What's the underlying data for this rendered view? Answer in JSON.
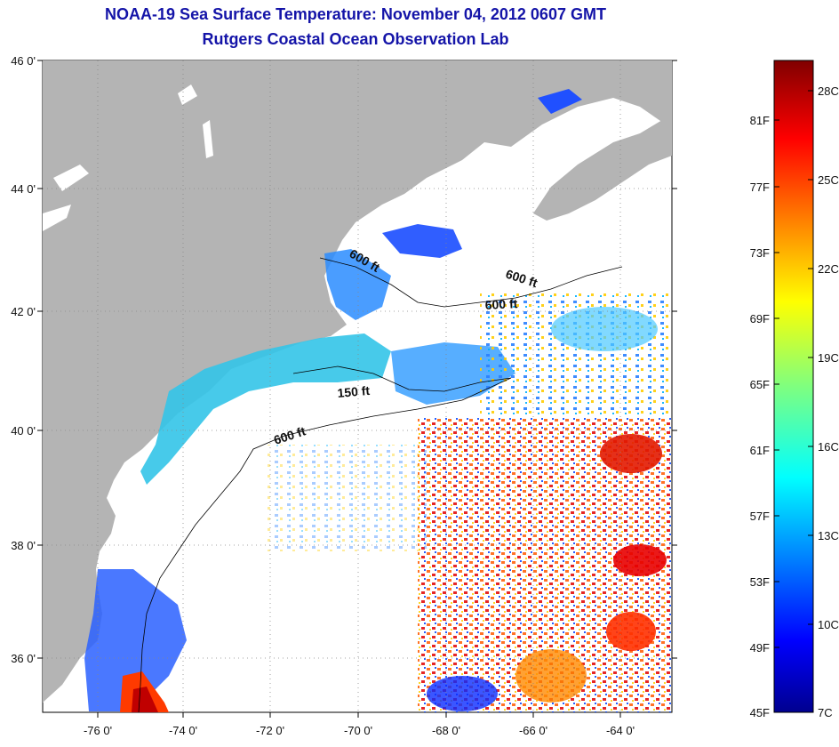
{
  "header": {
    "title": "NOAA-19 Sea Surface Temperature:  November 04, 2012 0607 GMT",
    "subtitle": "Rutgers Coastal Ocean Observation Lab"
  },
  "axes": {
    "lat_labels": [
      "46 0'",
      "44 0'",
      "42 0'",
      "40 0'",
      "38 0'",
      "36 0'"
    ],
    "lon_labels": [
      "-76 0'",
      "-74 0'",
      "-72 0'",
      "-70 0'",
      "-68 0'",
      "-66 0'",
      "-64 0'"
    ],
    "lat_range": [
      35,
      46
    ],
    "lon_range": [
      -77,
      -63
    ],
    "grid": "dotted"
  },
  "contours": [
    {
      "label": "600 ft"
    },
    {
      "label": "600 ft"
    },
    {
      "label": "600 ft"
    },
    {
      "label": "150 ft"
    },
    {
      "label": "600 ft"
    }
  ],
  "colorbar": {
    "fahrenheit_labels": [
      "81F",
      "77F",
      "73F",
      "69F",
      "65F",
      "61F",
      "57F",
      "53F",
      "49F",
      "45F"
    ],
    "celsius_labels": [
      "28C",
      "25C",
      "22C",
      "19C",
      "16C",
      "13C",
      "10C",
      "7C"
    ],
    "colormap": "jet",
    "range_c": [
      7,
      29
    ]
  },
  "colors": {
    "land": "#b4b4b4",
    "ocean_nodata": "#ffffff",
    "title": "#1414a8"
  }
}
